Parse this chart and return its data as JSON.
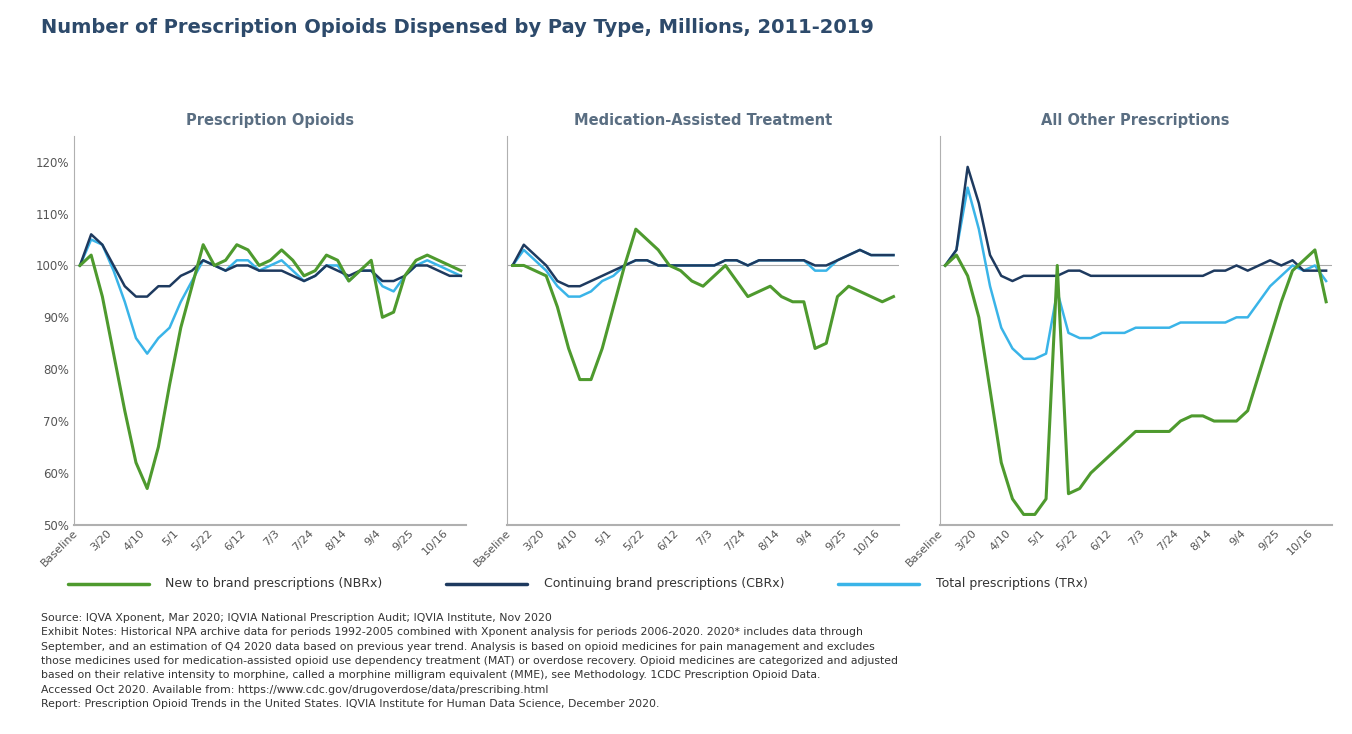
{
  "title": "Number of Prescription Opioids Dispensed by Pay Type, Millions, 2011-2019",
  "title_color": "#2d4a6b",
  "subplot_titles": [
    "Prescription Opioids",
    "Medication-Assisted Treatment",
    "All Other Prescriptions"
  ],
  "x_labels": [
    "Baseline",
    "3/20",
    "4/10",
    "5/1",
    "5/22",
    "6/12",
    "7/3",
    "7/24",
    "8/14",
    "9/4",
    "9/25",
    "10/16"
  ],
  "ylim": [
    50,
    125
  ],
  "yticks": [
    50,
    60,
    70,
    80,
    90,
    100,
    110,
    120
  ],
  "line_colors": {
    "NBRx": "#4e9a2e",
    "CBRx": "#1e3a5f",
    "TRx": "#3ab4e8"
  },
  "legend_labels": [
    "New to brand prescriptions (NBRx)",
    "Continuing brand prescriptions (CBRx)",
    "Total prescriptions (TRx)"
  ],
  "panel1": {
    "NBRx": [
      100,
      102,
      94,
      83,
      72,
      62,
      57,
      65,
      77,
      88,
      96,
      104,
      100,
      101,
      104,
      103,
      100,
      101,
      103,
      101,
      98,
      99,
      102,
      101,
      97,
      99,
      101,
      90,
      91,
      98,
      101,
      102,
      101,
      100,
      99
    ],
    "CBRx": [
      100,
      106,
      104,
      100,
      96,
      94,
      94,
      96,
      96,
      98,
      99,
      101,
      100,
      99,
      100,
      100,
      99,
      99,
      99,
      98,
      97,
      98,
      100,
      99,
      98,
      99,
      99,
      97,
      97,
      98,
      100,
      100,
      99,
      98,
      98
    ],
    "TRx": [
      100,
      105,
      104,
      99,
      93,
      86,
      83,
      86,
      88,
      93,
      97,
      101,
      100,
      99,
      101,
      101,
      99,
      100,
      101,
      99,
      97,
      98,
      100,
      100,
      97,
      99,
      99,
      96,
      95,
      98,
      100,
      101,
      100,
      99,
      98
    ]
  },
  "panel2": {
    "NBRx": [
      100,
      100,
      99,
      98,
      92,
      84,
      78,
      78,
      84,
      92,
      100,
      107,
      105,
      103,
      100,
      99,
      97,
      96,
      98,
      100,
      97,
      94,
      95,
      96,
      94,
      93,
      93,
      84,
      85,
      94,
      96,
      95,
      94,
      93,
      94
    ],
    "CBRx": [
      100,
      104,
      102,
      100,
      97,
      96,
      96,
      97,
      98,
      99,
      100,
      101,
      101,
      100,
      100,
      100,
      100,
      100,
      100,
      101,
      101,
      100,
      101,
      101,
      101,
      101,
      101,
      100,
      100,
      101,
      102,
      103,
      102,
      102,
      102
    ],
    "TRx": [
      100,
      103,
      101,
      99,
      96,
      94,
      94,
      95,
      97,
      98,
      100,
      101,
      101,
      100,
      100,
      100,
      100,
      100,
      100,
      101,
      101,
      100,
      101,
      101,
      101,
      101,
      101,
      99,
      99,
      101,
      102,
      103,
      102,
      102,
      102
    ]
  },
  "panel3": {
    "NBRx": [
      100,
      102,
      98,
      90,
      76,
      62,
      55,
      52,
      52,
      55,
      100,
      56,
      57,
      60,
      62,
      64,
      66,
      68,
      68,
      68,
      68,
      70,
      71,
      71,
      70,
      70,
      70,
      72,
      79,
      86,
      93,
      99,
      101,
      103,
      93
    ],
    "CBRx": [
      100,
      103,
      119,
      112,
      102,
      98,
      97,
      98,
      98,
      98,
      98,
      99,
      99,
      98,
      98,
      98,
      98,
      98,
      98,
      98,
      98,
      98,
      98,
      98,
      99,
      99,
      100,
      99,
      100,
      101,
      100,
      101,
      99,
      99,
      99
    ],
    "TRx": [
      100,
      103,
      115,
      107,
      96,
      88,
      84,
      82,
      82,
      83,
      95,
      87,
      86,
      86,
      87,
      87,
      87,
      88,
      88,
      88,
      88,
      89,
      89,
      89,
      89,
      89,
      90,
      90,
      93,
      96,
      98,
      100,
      99,
      100,
      97
    ]
  },
  "footnote_lines": [
    "Source: IQVA Xponent, Mar 2020; IQVIA National Prescription Audit; IQVIA Institute, Nov 2020",
    "Exhibit Notes: Historical NPA archive data for periods 1992-2005 combined with Xponent analysis for periods 2006-2020. 2020* includes data through",
    "September, and an estimation of Q4 2020 data based on previous year trend. Analysis is based on opioid medicines for pain management and excludes",
    "those medicines used for medication-assisted opioid use dependency treatment (MAT) or overdose recovery. Opioid medicines are categorized and adjusted",
    "based on their relative intensity to morphine, called a morphine milligram equivalent (MME), see Methodology. 1CDC Prescription Opioid Data.",
    "Accessed Oct 2020. Available from: https://www.cdc.gov/drugoverdose/data/prescribing.html",
    "Report: Prescription Opioid Trends in the United States. IQVIA Institute for Human Data Science, December 2020."
  ]
}
